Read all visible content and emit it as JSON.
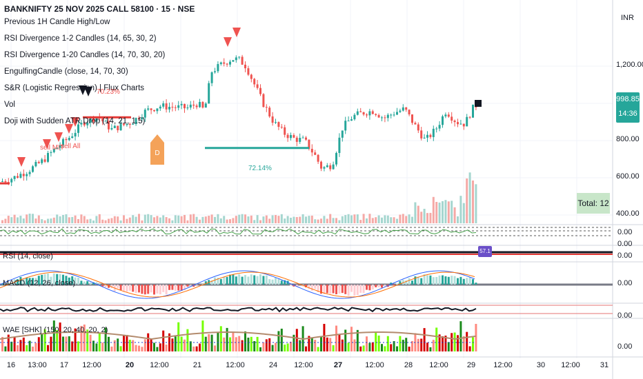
{
  "header": {
    "symbol_title": "BANKNIFTY 25 NOV 2025 CALL 58100 · 15 · NSE"
  },
  "indicators": [
    {
      "label": "Previous 1H Candle High/Low"
    },
    {
      "label": "RSI Divergence 1-2 Candles (14, 65, 30, 2)"
    },
    {
      "label": "RSI Divergence 1-20 Candles (14, 70, 30, 20)"
    },
    {
      "label": "EngulfingCandle (close, 14, 70, 30)"
    },
    {
      "label": "S&R (Logistic Regression) | Flux Charts"
    },
    {
      "label": "Vol"
    },
    {
      "label": "Doji with Sudden ATR Drop (14, 21, 1.5)"
    }
  ],
  "price_axis": {
    "currency": "INR",
    "labels": [
      "1,200.00",
      "800.00",
      "600.00",
      "400.00"
    ],
    "last_price": "998.85",
    "countdown": "14:36"
  },
  "annotations": {
    "pct_left": "70.23%",
    "pct_mid": "72.14%",
    "sell_mit": "sell MIT",
    "sell_a": "sell All",
    "d_label": "D",
    "total_label": "Total: 12"
  },
  "panes": {
    "pane1_value": "0.00",
    "pane1_value_b": "0.00",
    "rsi_title": "RSI (14, close)",
    "rsi_value": "0.00",
    "rsi_badge": "57.1",
    "macd_title": "MACD (12, 26, close)",
    "macd_value": "0.00",
    "pane4_value": "0.00",
    "wae_title": "WAE [SHK] (150, 20, 40, 20, 2)",
    "wae_value": "0.00"
  },
  "time_axis": {
    "labels": [
      {
        "text": "16",
        "bold": false
      },
      {
        "text": "13:00",
        "bold": false
      },
      {
        "text": "17",
        "bold": false
      },
      {
        "text": "12:00",
        "bold": false
      },
      {
        "text": "20",
        "bold": true
      },
      {
        "text": "12:00",
        "bold": false
      },
      {
        "text": "21",
        "bold": false
      },
      {
        "text": "12:00",
        "bold": false
      },
      {
        "text": "24",
        "bold": false
      },
      {
        "text": "12:00",
        "bold": false
      },
      {
        "text": "27",
        "bold": true
      },
      {
        "text": "12:00",
        "bold": false
      },
      {
        "text": "28",
        "bold": false
      },
      {
        "text": "12:00",
        "bold": false
      },
      {
        "text": "29",
        "bold": false
      },
      {
        "text": "12:00",
        "bold": false
      },
      {
        "text": "30",
        "bold": false
      },
      {
        "text": "12:00",
        "bold": false
      },
      {
        "text": "31",
        "bold": false
      }
    ]
  },
  "colors": {
    "up": "#26a69a",
    "down": "#ef5350",
    "up_vol": "#a5d6cf",
    "down_vol": "#f5a9a6",
    "macd_blue": "#2962ff",
    "macd_orange": "#ff6d00",
    "grid": "#f0f3fa"
  },
  "chart_data": {
    "type": "candlestick",
    "title": "BANKNIFTY 25 NOV 2025 CALL 58100 · 15 · NSE",
    "ylim": [
      300,
      1350
    ],
    "yticks": [
      400,
      600,
      800,
      1200
    ],
    "close_path": [
      [
        0,
        580
      ],
      [
        18,
        600
      ],
      [
        40,
        640
      ],
      [
        60,
        690
      ],
      [
        80,
        760
      ],
      [
        100,
        820
      ],
      [
        120,
        900
      ],
      [
        140,
        930
      ],
      [
        160,
        860
      ],
      [
        175,
        880
      ],
      [
        190,
        900
      ],
      [
        210,
        960
      ],
      [
        230,
        985
      ],
      [
        250,
        980
      ],
      [
        270,
        975
      ],
      [
        285,
        1000
      ],
      [
        295,
        960
      ],
      [
        305,
        1170
      ],
      [
        320,
        1210
      ],
      [
        335,
        1240
      ],
      [
        345,
        1235
      ],
      [
        355,
        1200
      ],
      [
        365,
        1120
      ],
      [
        380,
        1000
      ],
      [
        395,
        900
      ],
      [
        410,
        840
      ],
      [
        425,
        810
      ],
      [
        440,
        800
      ],
      [
        455,
        720
      ],
      [
        465,
        650
      ],
      [
        480,
        670
      ],
      [
        495,
        870
      ],
      [
        510,
        930
      ],
      [
        525,
        950
      ],
      [
        540,
        960
      ],
      [
        555,
        920
      ],
      [
        570,
        950
      ],
      [
        585,
        970
      ],
      [
        600,
        880
      ],
      [
        615,
        800
      ],
      [
        630,
        860
      ],
      [
        645,
        960
      ],
      [
        660,
        900
      ],
      [
        672,
        890
      ],
      [
        685,
        980
      ],
      [
        692,
        998.85
      ]
    ]
  }
}
